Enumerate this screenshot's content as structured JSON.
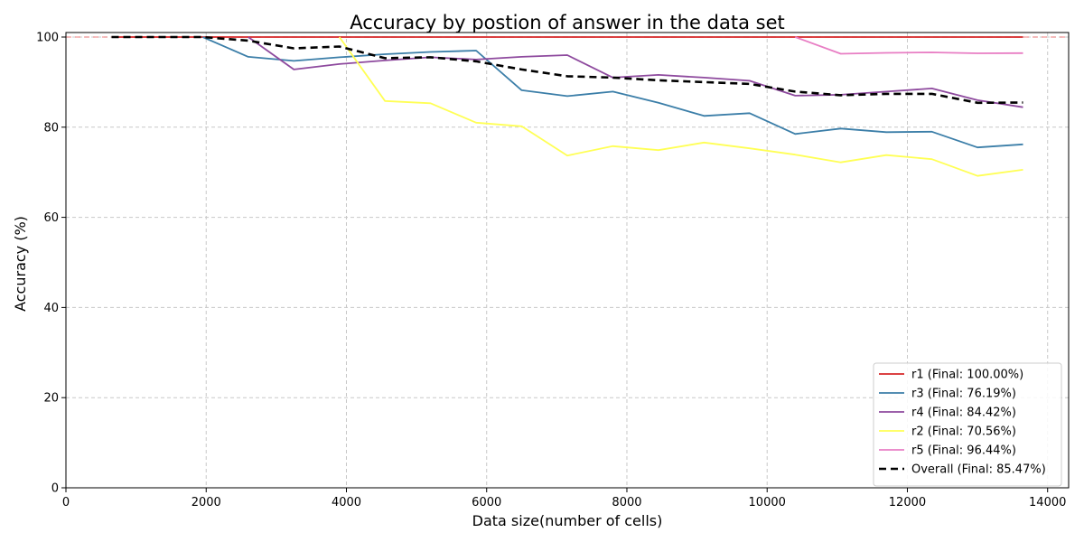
{
  "chart_data": {
    "type": "line",
    "title": "Accuracy by postion of answer in the data set",
    "xlabel": "Data size(number of cells)",
    "ylabel": "Accuracy (%)",
    "xlim": [
      0,
      14300
    ],
    "ylim": [
      0,
      101
    ],
    "xticks": [
      0,
      2000,
      4000,
      6000,
      8000,
      10000,
      12000,
      14000
    ],
    "yticks": [
      0,
      20,
      40,
      60,
      80,
      100
    ],
    "xtick_labels": [
      "0",
      "2000",
      "4000",
      "6000",
      "8000",
      "10000",
      "12000",
      "14000"
    ],
    "ytick_labels": [
      "0",
      "20",
      "40",
      "60",
      "80",
      "100"
    ],
    "grid": true,
    "legend_position": "lower-right",
    "reference_line": {
      "y": 100,
      "color": "#f08080",
      "style": "dashed"
    },
    "series": [
      {
        "name": "r1 (Final: 100.00%)",
        "color": "#d62728",
        "style": "solid",
        "points": [
          [
            650,
            100
          ],
          [
            1300,
            100
          ],
          [
            1950,
            100
          ],
          [
            2600,
            100
          ],
          [
            3250,
            100
          ],
          [
            3900,
            100
          ],
          [
            4550,
            100
          ],
          [
            5200,
            100
          ],
          [
            5850,
            100
          ],
          [
            6500,
            100
          ],
          [
            7150,
            100
          ],
          [
            7800,
            100
          ],
          [
            8450,
            100
          ],
          [
            9100,
            100
          ],
          [
            9750,
            100
          ],
          [
            10400,
            100
          ],
          [
            11050,
            100
          ],
          [
            11700,
            100
          ],
          [
            12350,
            100
          ],
          [
            13000,
            100
          ],
          [
            13650,
            100
          ]
        ]
      },
      {
        "name": "r3 (Final: 76.19%)",
        "color": "#3b7ea8",
        "style": "solid",
        "points": [
          [
            1950,
            100
          ],
          [
            2600,
            95.6
          ],
          [
            3250,
            94.7
          ],
          [
            3900,
            95.5
          ],
          [
            4550,
            96.2
          ],
          [
            5200,
            96.7
          ],
          [
            5850,
            97.0
          ],
          [
            6500,
            88.2
          ],
          [
            7150,
            86.9
          ],
          [
            7800,
            87.9
          ],
          [
            8450,
            85.4
          ],
          [
            9100,
            82.5
          ],
          [
            9750,
            83.1
          ],
          [
            10400,
            78.5
          ],
          [
            11050,
            79.7
          ],
          [
            11700,
            78.9
          ],
          [
            12350,
            79.0
          ],
          [
            13000,
            75.5
          ],
          [
            13650,
            76.19
          ]
        ]
      },
      {
        "name": "r4 (Final: 84.42%)",
        "color": "#8e4a9e",
        "style": "solid",
        "points": [
          [
            2600,
            100
          ],
          [
            3250,
            92.8
          ],
          [
            3900,
            94.0
          ],
          [
            4550,
            94.8
          ],
          [
            5200,
            95.5
          ],
          [
            5850,
            95.0
          ],
          [
            6500,
            95.6
          ],
          [
            7150,
            96.0
          ],
          [
            7800,
            91.0
          ],
          [
            8450,
            91.6
          ],
          [
            9100,
            91.0
          ],
          [
            9750,
            90.3
          ],
          [
            10400,
            87.0
          ],
          [
            11050,
            87.2
          ],
          [
            11700,
            87.9
          ],
          [
            12350,
            88.6
          ],
          [
            13000,
            86.0
          ],
          [
            13650,
            84.42
          ]
        ]
      },
      {
        "name": "r2 (Final: 70.56%)",
        "color": "#ffff55",
        "style": "solid",
        "points": [
          [
            3900,
            100
          ],
          [
            4550,
            85.8
          ],
          [
            5200,
            85.3
          ],
          [
            5850,
            81.0
          ],
          [
            6500,
            80.2
          ],
          [
            7150,
            73.7
          ],
          [
            7800,
            75.8
          ],
          [
            8450,
            74.9
          ],
          [
            9100,
            76.6
          ],
          [
            9750,
            75.3
          ],
          [
            10400,
            73.9
          ],
          [
            11050,
            72.2
          ],
          [
            11700,
            73.8
          ],
          [
            12350,
            72.9
          ],
          [
            13000,
            69.2
          ],
          [
            13650,
            70.56
          ]
        ]
      },
      {
        "name": "r5 (Final: 96.44%)",
        "color": "#e87ec4",
        "style": "solid",
        "points": [
          [
            10400,
            100
          ],
          [
            11050,
            96.3
          ],
          [
            11700,
            96.5
          ],
          [
            12350,
            96.6
          ],
          [
            13000,
            96.4
          ],
          [
            13650,
            96.44
          ]
        ]
      },
      {
        "name": "Overall (Final: 85.47%)",
        "color": "#000000",
        "style": "dashed",
        "points": [
          [
            650,
            100
          ],
          [
            1300,
            100
          ],
          [
            1950,
            100
          ],
          [
            2600,
            99.2
          ],
          [
            3250,
            97.5
          ],
          [
            3900,
            97.9
          ],
          [
            4550,
            95.3
          ],
          [
            5200,
            95.5
          ],
          [
            5850,
            94.6
          ],
          [
            6500,
            92.8
          ],
          [
            7150,
            91.3
          ],
          [
            7800,
            91.0
          ],
          [
            8450,
            90.4
          ],
          [
            9100,
            90.0
          ],
          [
            9750,
            89.6
          ],
          [
            10400,
            87.9
          ],
          [
            11050,
            87.1
          ],
          [
            11700,
            87.4
          ],
          [
            12350,
            87.4
          ],
          [
            13000,
            85.4
          ],
          [
            13650,
            85.47
          ]
        ]
      }
    ]
  }
}
